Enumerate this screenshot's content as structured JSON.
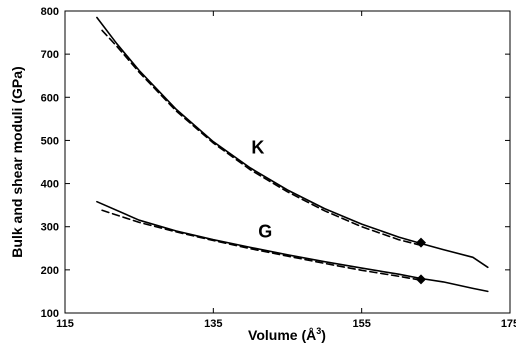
{
  "chart_data": {
    "type": "line",
    "title": "",
    "xlabel": "Volume (Å",
    "xlabel_sup": "3",
    "xlabel_close": ")",
    "ylabel": "Bulk and shear moduli (GPa)",
    "xlim": [
      115,
      175
    ],
    "ylim": [
      100,
      800
    ],
    "xticks": [
      115,
      135,
      155,
      175
    ],
    "yticks": [
      100,
      200,
      300,
      400,
      500,
      600,
      700,
      800
    ],
    "grid": false,
    "series": [
      {
        "name": "K",
        "style": "solid",
        "x": [
          119.3,
          122,
          125,
          130,
          135,
          140,
          145,
          150,
          155,
          160,
          163,
          166,
          170,
          172
        ],
        "y": [
          785,
          724,
          662,
          572,
          497,
          436,
          385,
          342,
          306,
          276,
          261,
          247,
          229,
          206
        ]
      },
      {
        "name": "K",
        "style": "dashed",
        "x": [
          120,
          122,
          125,
          130,
          135,
          140,
          145,
          150,
          155,
          160,
          163
        ],
        "y": [
          755,
          718,
          658,
          568,
          494,
          432,
          381,
          337,
          300,
          270,
          257
        ]
      },
      {
        "name": "G",
        "style": "solid",
        "x": [
          119.3,
          125,
          130,
          135,
          140,
          145,
          150,
          155,
          160,
          163,
          166,
          170,
          172
        ],
        "y": [
          358,
          315,
          290,
          270,
          252,
          235,
          219,
          204,
          190,
          180,
          172,
          157,
          150
        ]
      },
      {
        "name": "G",
        "style": "dashed",
        "x": [
          120,
          125,
          130,
          135,
          140,
          145,
          150,
          155,
          160,
          163
        ],
        "y": [
          338,
          310,
          288,
          268,
          249,
          232,
          215,
          199,
          185,
          176
        ]
      }
    ],
    "markers": [
      {
        "x": 163,
        "y": 263
      },
      {
        "x": 163,
        "y": 178
      }
    ],
    "annotations": [
      {
        "text": "K",
        "x": 141,
        "y": 470
      },
      {
        "text": "G",
        "x": 142,
        "y": 275
      }
    ]
  }
}
